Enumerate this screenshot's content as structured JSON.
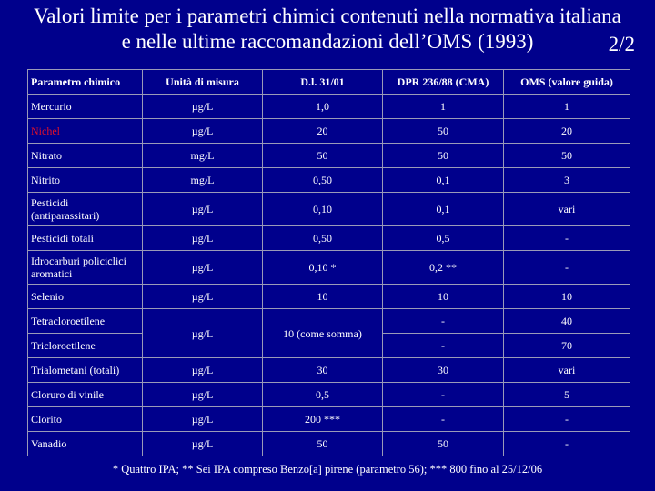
{
  "title": {
    "line1": "Valori limite per i parametri chimici contenuti nella normativa italiana",
    "line2": "e nelle ultime raccomandazioni dell’OMS (1993)",
    "page": "2/2"
  },
  "table": {
    "headers": [
      "Parametro chimico",
      "Unità di misura",
      "D.l. 31/01",
      "DPR 236/88   (CMA)",
      "OMS (valore guida)"
    ],
    "rows": [
      {
        "name": "Mercurio",
        "unit": "µg/L",
        "dl": "1,0",
        "dpr": "1",
        "oms": "1"
      },
      {
        "name": "Nichel",
        "unit": "µg/L",
        "dl": "20",
        "dpr": "50",
        "oms": "20"
      },
      {
        "name": "Nitrato",
        "unit": "mg/L",
        "dl": "50",
        "dpr": "50",
        "oms": "50"
      },
      {
        "name": "Nitrito",
        "unit": "mg/L",
        "dl": "0,50",
        "dpr": "0,1",
        "oms": "3"
      },
      {
        "name": "Pesticidi (antiparassitari)",
        "unit": "µg/L",
        "dl": "0,10",
        "dpr": "0,1",
        "oms": "vari"
      },
      {
        "name": "Pesticidi totali",
        "unit": "µg/L",
        "dl": "0,50",
        "dpr": "0,5",
        "oms": "-"
      },
      {
        "name": "Idrocarburi policiclici aromatici",
        "unit": "µg/L",
        "dl": "0,10 *",
        "dpr": "0,2 **",
        "oms": "-"
      },
      {
        "name": "Selenio",
        "unit": "µg/L",
        "dl": "10",
        "dpr": "10",
        "oms": "10"
      }
    ],
    "merged": {
      "name_a": "Tetracloroetilene",
      "name_b": "Tricloroetilene",
      "unit": "µg/L",
      "dl": "10   (come somma)",
      "dpr_a": "-",
      "oms_a": "40",
      "dpr_b": "-",
      "oms_b": "70"
    },
    "rows_after": [
      {
        "name": "Trialometani (totali)",
        "unit": "µg/L",
        "dl": "30",
        "dpr": "30",
        "oms": "vari"
      },
      {
        "name": "Cloruro di vinile",
        "unit": "µg/L",
        "dl": "0,5",
        "dpr": "-",
        "oms": "5"
      },
      {
        "name": "Clorito",
        "unit": "µg/L",
        "dl": "200 ***",
        "dpr": "-",
        "oms": "-"
      },
      {
        "name": "Vanadio",
        "unit": "µg/L",
        "dl": "50",
        "dpr": "50",
        "oms": "-"
      }
    ]
  },
  "footnote": "* Quattro IPA;  ** Sei IPA compreso Benzo[a] pirene (parametro 56); *** 800 fino al 25/12/06",
  "colors": {
    "background": "#00008c",
    "text": "#ffffff",
    "highlight": "#e0102a"
  }
}
